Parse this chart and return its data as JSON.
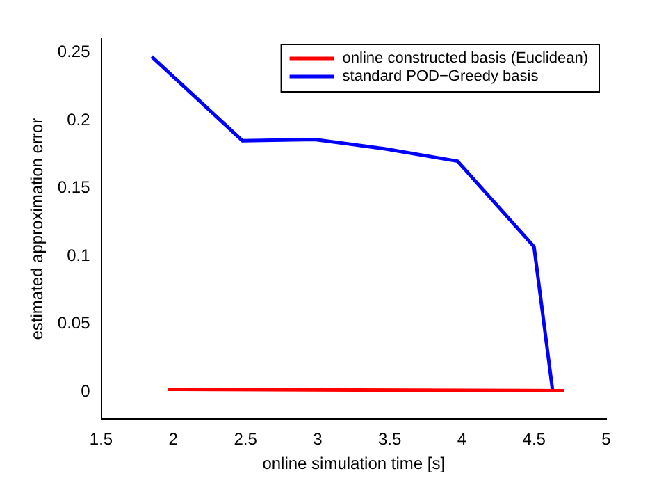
{
  "chart_data": {
    "type": "line",
    "xlabel": "online simulation time [s]",
    "ylabel": "estimated approximation error",
    "xlim": [
      1.5,
      5
    ],
    "xticks": [
      1.5,
      2,
      2.5,
      3,
      3.5,
      4,
      4.5,
      5
    ],
    "ylim": [
      -0.02,
      0.26
    ],
    "yticks": [
      0,
      0.05,
      0.1,
      0.15,
      0.2,
      0.25
    ],
    "grid": false,
    "legend": "top right",
    "marker": "none",
    "line_style": "solid",
    "series": [
      {
        "name": "online constructed basis (Euclidean)",
        "color": "#ff0000",
        "x": [
          1.96,
          4.71
        ],
        "values": [
          0.002,
          0.001
        ]
      },
      {
        "name": "standard POD−Greedy basis",
        "color": "#0000ff",
        "x": [
          1.85,
          2.48,
          2.98,
          3.47,
          3.97,
          4.5,
          4.63
        ],
        "values": [
          0.247,
          0.185,
          0.186,
          0.179,
          0.17,
          0.107,
          0
        ]
      }
    ]
  }
}
